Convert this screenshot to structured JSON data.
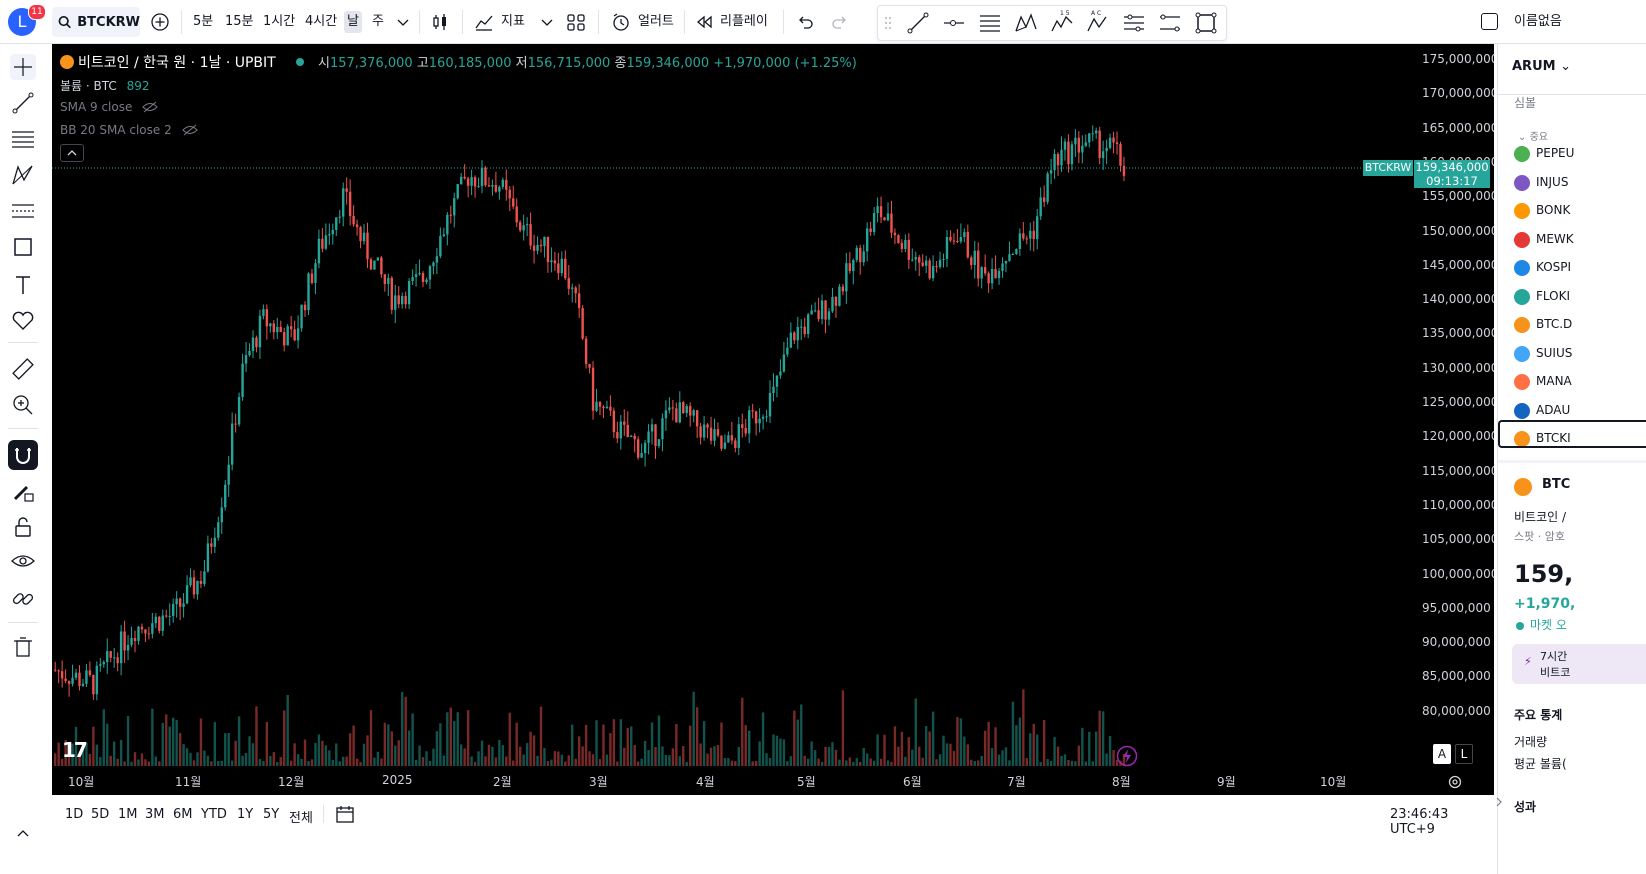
{
  "topbar": {
    "avatar_letter": "L",
    "notification_count": "11",
    "symbol": "BTCKRW",
    "intervals": [
      "5분",
      "15분",
      "1시간",
      "4시간",
      "날",
      "주"
    ],
    "selected_interval": "날",
    "indicators_label": "지표",
    "alert_label": "얼러트",
    "replay_label": "리플레이",
    "unnamed_label": "이름없음"
  },
  "chart": {
    "legend": {
      "title": "비트코인 / 한국 원 · 1날 · UPBIT",
      "open_label": "시",
      "open": "157,376,000",
      "high_label": "고",
      "high": "160,185,000",
      "low_label": "저",
      "low": "156,715,000",
      "close_label": "종",
      "close": "159,346,000",
      "change": "+1,970,000 (+1.25%)"
    },
    "volume_label": "볼륨 · BTC",
    "volume_value": "892",
    "sma_label": "SMA 9 close",
    "bb_label": "BB 20 SMA close 2",
    "price_tag_symbol": "BTCKRW",
    "price_tag_value": "159,346,000",
    "price_tag_countdown": "09:13:17",
    "price_axis": [
      "175,000,000",
      "170,000,000",
      "165,000,000",
      "160,000,000",
      "155,000,000",
      "150,000,000",
      "145,000,000",
      "140,000,000",
      "135,000,000",
      "130,000,000",
      "125,000,000",
      "120,000,000",
      "115,000,000",
      "110,000,000",
      "105,000,000",
      "100,000,000",
      "95,000,000",
      "90,000,000",
      "85,000,000",
      "80,000,000"
    ],
    "time_axis": [
      "10월",
      "11월",
      "12월",
      "2025",
      "2월",
      "3월",
      "4월",
      "5월",
      "6월",
      "7월",
      "8월",
      "9월",
      "10월"
    ],
    "scale_buttons": [
      "A",
      "L"
    ],
    "colors": {
      "up": "#26a69a",
      "down": "#ef5350",
      "background": "#000000"
    }
  },
  "bottombar": {
    "ranges": [
      "1D",
      "5D",
      "1M",
      "3M",
      "6M",
      "YTD",
      "1Y",
      "5Y",
      "전체"
    ],
    "clock": "23:46:43 UTC+9"
  },
  "watchlist": {
    "name": "ARUM",
    "column_symbol": "심볼",
    "section": "중요",
    "items": [
      "PEPEU",
      "INJUS",
      "BONK",
      "MEWK",
      "KOSPI",
      "FLOKI",
      "BTC.D",
      "SUIUS",
      "MANA",
      "ADAU",
      "BTCKI"
    ],
    "details": {
      "symbol": "BTC",
      "name": "비트코인 /",
      "type": "스팟 · 암호",
      "price": "159,",
      "change": "+1,970,",
      "market_status": "마켓 오",
      "promo_line1": "7시간",
      "promo_line2": "비트코",
      "key_stats": "주요 통계",
      "volume": "거래량",
      "avg_volume": "평균 볼륨(",
      "performance": "성과"
    }
  }
}
